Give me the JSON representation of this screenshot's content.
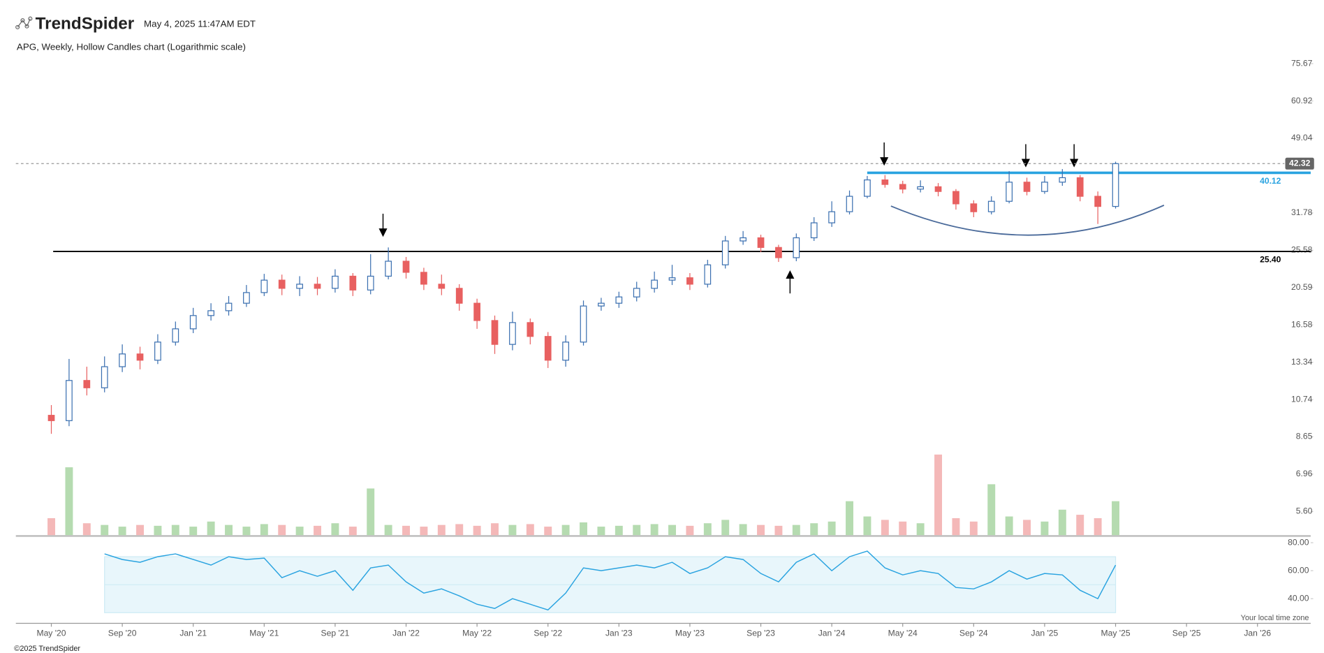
{
  "header": {
    "brand": "TrendSpider",
    "timestamp": "May 4, 2025 11:47AM EDT",
    "subtitle": "APG, Weekly, Hollow Candles chart (Logarithmic scale)"
  },
  "footer": {
    "timezone_note": "Your local time zone",
    "copyright": "©2025 TrendSpider"
  },
  "chart_data": {
    "type": "candlestick",
    "log_scale": true,
    "up_color": "#3a6fb0",
    "down_color": "#e86060",
    "x": [
      "2020-05",
      "2020-06",
      "2020-07",
      "2020-08",
      "2020-09",
      "2020-10",
      "2020-11",
      "2020-12",
      "2021-01",
      "2021-02",
      "2021-03",
      "2021-04",
      "2021-05",
      "2021-06",
      "2021-07",
      "2021-08",
      "2021-09",
      "2021-10",
      "2021-11",
      "2021-12",
      "2022-01",
      "2022-02",
      "2022-03",
      "2022-04",
      "2022-05",
      "2022-06",
      "2022-07",
      "2022-08",
      "2022-09",
      "2022-10",
      "2022-11",
      "2022-12",
      "2023-01",
      "2023-02",
      "2023-03",
      "2023-04",
      "2023-05",
      "2023-06",
      "2023-07",
      "2023-08",
      "2023-09",
      "2023-10",
      "2023-11",
      "2023-12",
      "2024-01",
      "2024-02",
      "2024-03",
      "2024-04",
      "2024-05",
      "2024-06",
      "2024-07",
      "2024-08",
      "2024-09",
      "2024-10",
      "2024-11",
      "2024-12",
      "2025-01",
      "2025-02",
      "2025-03",
      "2025-04",
      "2025-05"
    ],
    "open": [
      9.8,
      9.5,
      12.0,
      11.5,
      13.0,
      14.0,
      13.5,
      15.0,
      16.2,
      17.5,
      18.0,
      18.8,
      20.0,
      21.5,
      20.5,
      21.0,
      20.5,
      22.0,
      20.3,
      22.0,
      24.0,
      22.5,
      21.0,
      20.5,
      18.8,
      17.0,
      14.8,
      16.8,
      15.5,
      13.5,
      15.0,
      18.5,
      18.8,
      19.5,
      20.5,
      21.5,
      21.8,
      21.0,
      23.5,
      27.0,
      27.5,
      26.0,
      24.5,
      27.5,
      30.0,
      32.0,
      35.0,
      38.5,
      37.5,
      36.5,
      37.0,
      36.0,
      33.5,
      32.0,
      34.0,
      38.0,
      36.0,
      38.0,
      39.0,
      35.0,
      33.0
    ],
    "high": [
      10.4,
      13.6,
      13.0,
      13.8,
      14.8,
      14.6,
      15.7,
      16.9,
      18.3,
      18.8,
      19.6,
      20.9,
      22.3,
      22.2,
      22.0,
      21.9,
      22.9,
      22.4,
      25.0,
      26.0,
      24.6,
      23.1,
      22.2,
      21.0,
      19.3,
      17.5,
      17.9,
      17.2,
      15.9,
      15.6,
      19.1,
      19.4,
      20.1,
      21.3,
      22.6,
      23.5,
      22.4,
      24.2,
      27.8,
      28.6,
      28.0,
      26.4,
      28.2,
      31.0,
      34.0,
      36.2,
      39.4,
      39.6,
      38.3,
      38.4,
      37.8,
      36.5,
      34.2,
      35.0,
      40.5,
      39.0,
      39.4,
      41.0,
      39.6,
      36.0,
      42.8
    ],
    "low": [
      8.8,
      9.2,
      11.0,
      11.2,
      12.6,
      12.8,
      13.2,
      14.7,
      15.8,
      17.0,
      17.5,
      18.4,
      19.6,
      19.7,
      19.6,
      19.7,
      20.0,
      19.6,
      19.8,
      21.6,
      21.7,
      20.3,
      19.7,
      18.0,
      16.2,
      14.0,
      14.3,
      14.8,
      12.9,
      13.0,
      14.7,
      18.0,
      18.3,
      19.0,
      20.0,
      20.9,
      20.3,
      20.6,
      23.0,
      26.4,
      25.3,
      23.9,
      24.0,
      27.0,
      29.3,
      31.5,
      34.6,
      36.8,
      35.6,
      35.8,
      35.0,
      32.4,
      31.0,
      31.5,
      33.6,
      35.2,
      35.5,
      37.2,
      34.0,
      29.8,
      32.6
    ],
    "close": [
      9.5,
      12.0,
      11.5,
      13.0,
      14.0,
      13.5,
      15.0,
      16.2,
      17.5,
      18.0,
      18.8,
      20.0,
      21.5,
      20.5,
      21.0,
      20.5,
      22.0,
      20.3,
      22.0,
      24.0,
      22.5,
      21.0,
      20.5,
      18.8,
      17.0,
      14.8,
      16.8,
      15.5,
      13.5,
      15.0,
      18.5,
      18.8,
      19.5,
      20.5,
      21.5,
      21.8,
      21.0,
      23.5,
      27.0,
      27.5,
      26.0,
      24.5,
      27.5,
      30.0,
      32.0,
      35.0,
      38.5,
      37.5,
      36.5,
      37.0,
      36.0,
      33.5,
      32.0,
      34.0,
      38.0,
      36.0,
      38.0,
      39.0,
      35.0,
      33.0,
      42.32
    ],
    "xlim": [
      "2020-03",
      "2026-04"
    ],
    "xticks": [
      {
        "value": "2020-05",
        "label": "May '20"
      },
      {
        "value": "2020-09",
        "label": "Sep '20"
      },
      {
        "value": "2021-01",
        "label": "Jan '21"
      },
      {
        "value": "2021-05",
        "label": "May '21"
      },
      {
        "value": "2021-09",
        "label": "Sep '21"
      },
      {
        "value": "2022-01",
        "label": "Jan '22"
      },
      {
        "value": "2022-05",
        "label": "May '22"
      },
      {
        "value": "2022-09",
        "label": "Sep '22"
      },
      {
        "value": "2023-01",
        "label": "Jan '23"
      },
      {
        "value": "2023-05",
        "label": "May '23"
      },
      {
        "value": "2023-09",
        "label": "Sep '23"
      },
      {
        "value": "2024-01",
        "label": "Jan '24"
      },
      {
        "value": "2024-05",
        "label": "May '24"
      },
      {
        "value": "2024-09",
        "label": "Sep '24"
      },
      {
        "value": "2025-01",
        "label": "Jan '25"
      },
      {
        "value": "2025-05",
        "label": "May '25"
      },
      {
        "value": "2025-09",
        "label": "Sep '25"
      },
      {
        "value": "2026-01",
        "label": "Jan '26"
      }
    ],
    "ylim": [
      4.86,
      81.5
    ],
    "yticks": [
      75.67,
      60.92,
      49.04,
      31.78,
      25.58,
      20.59,
      16.58,
      13.34,
      10.74,
      8.65,
      6.96,
      {
        "value": 5.6,
        "label": "5.60"
      }
    ],
    "levels": [
      {
        "value": 25.4,
        "label": "25.40",
        "color": "#000000"
      },
      {
        "value": 40.12,
        "color": "#29a3e0"
      }
    ],
    "last_price": 42.32,
    "volume": [
      20,
      80,
      14,
      12,
      10,
      12,
      11,
      12,
      10,
      16,
      12,
      10,
      13,
      12,
      10,
      11,
      14,
      10,
      55,
      12,
      11,
      10,
      12,
      13,
      11,
      14,
      12,
      13,
      10,
      12,
      15,
      10,
      11,
      12,
      13,
      12,
      11,
      14,
      18,
      13,
      12,
      11,
      12,
      14,
      16,
      40,
      22,
      18,
      16,
      14,
      95,
      20,
      16,
      60,
      22,
      18,
      16,
      30,
      24,
      20,
      40
    ],
    "volume_color_up": "#b5dbb0",
    "volume_color_down": "#f4b8b8",
    "volume_lim": [
      0,
      100
    ],
    "rsi": [
      null,
      null,
      null,
      72,
      68,
      66,
      70,
      72,
      68,
      64,
      70,
      68,
      69,
      55,
      60,
      56,
      60,
      46,
      62,
      64,
      52,
      44,
      47,
      42,
      36,
      33,
      40,
      36,
      32,
      44,
      62,
      60,
      62,
      64,
      62,
      66,
      58,
      62,
      70,
      68,
      58,
      52,
      66,
      72,
      60,
      70,
      74,
      62,
      57,
      60,
      58,
      48,
      47,
      52,
      60,
      54,
      58,
      57,
      46,
      40,
      64
    ],
    "rsi_color": "#29a3e0",
    "rsi_band": [
      30,
      70
    ],
    "rsi_ylim": [
      22.4,
      84.8
    ],
    "rsi_yticks": [
      {
        "value": 80,
        "label": "80.00"
      },
      {
        "value": 60,
        "label": "60.00"
      },
      {
        "value": 40,
        "label": "40.00"
      }
    ]
  }
}
